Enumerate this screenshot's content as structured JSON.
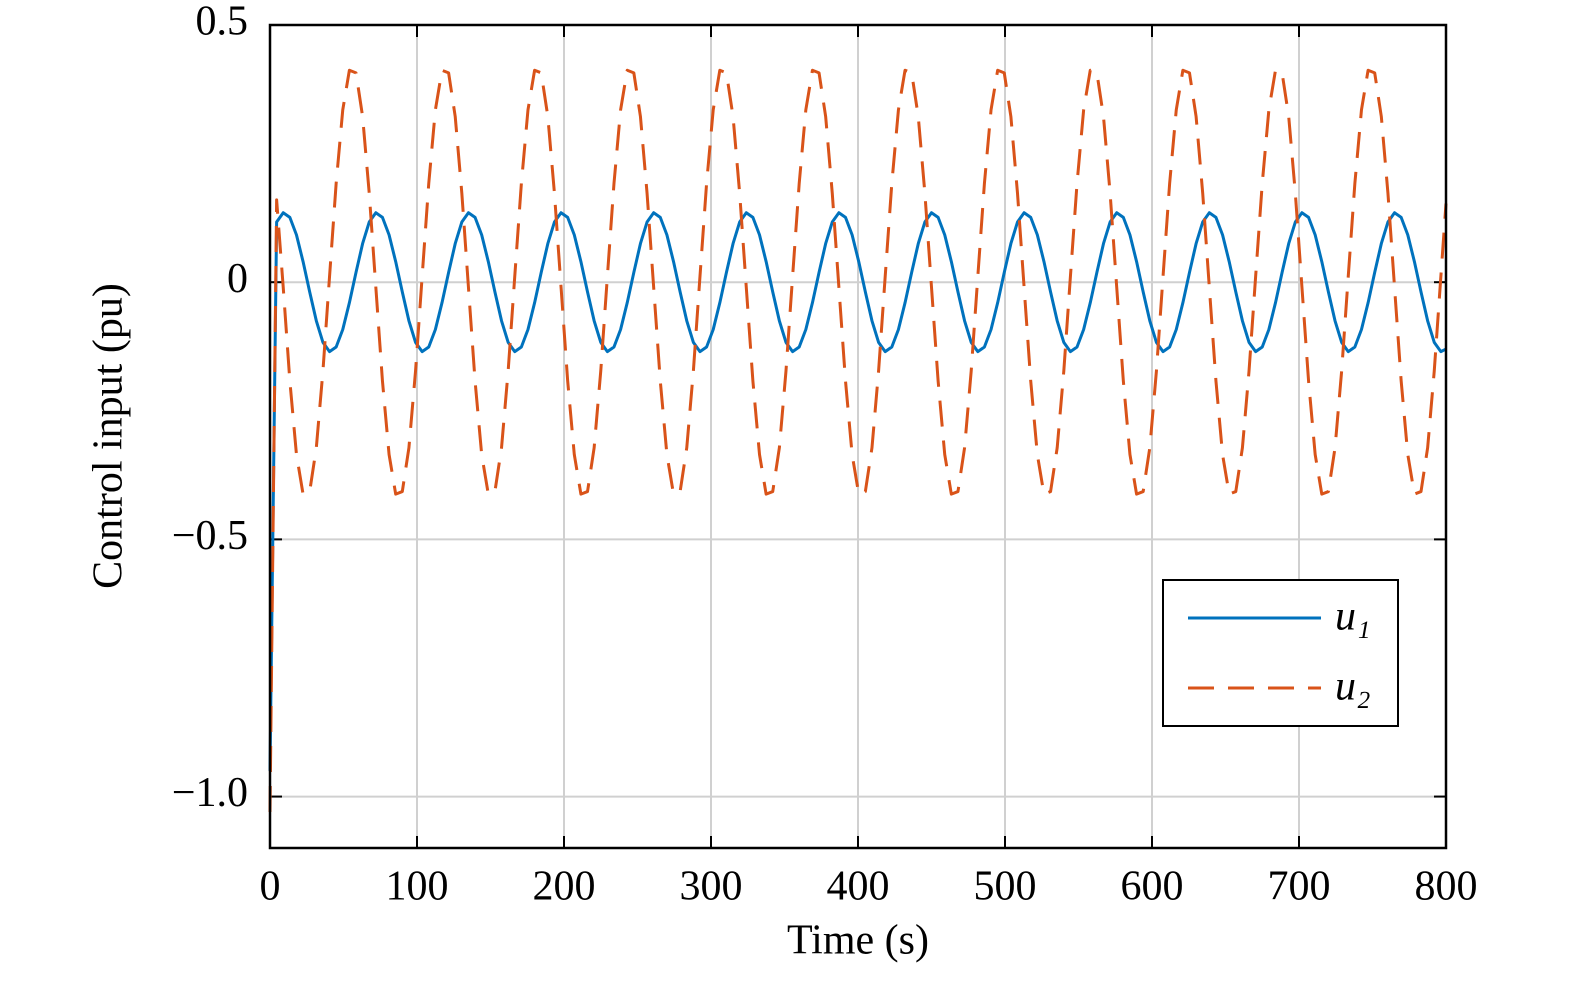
{
  "chart_data": {
    "type": "line",
    "xlabel": "Time (s)",
    "ylabel": "Control input (pu)",
    "xlim": [
      0,
      800
    ],
    "xticks": [
      0,
      100,
      200,
      300,
      400,
      500,
      600,
      700,
      800
    ],
    "ylim": [
      -1.1,
      0.5
    ],
    "yticks": [
      0.5,
      0,
      {
        "value": -0.5,
        "label": "−0.5"
      },
      {
        "value": -1,
        "label": "−1.0"
      }
    ],
    "grid": true,
    "legend": "lower right",
    "x": [
      0,
      4.5,
      9,
      13.5,
      18,
      22.5,
      27,
      31.5,
      36,
      40.5,
      45,
      49.5,
      54,
      58.5,
      63,
      67.5,
      72,
      76.5,
      81,
      85.5,
      90,
      94.5,
      99,
      103.5,
      108,
      112.5,
      117,
      121.5,
      126,
      130.5,
      135,
      139.5,
      144,
      148.5,
      153,
      157.5,
      162,
      166.5,
      171,
      175.5,
      180,
      184.5,
      189,
      193.5,
      198,
      202.5,
      207,
      211.5,
      216,
      220.5,
      225,
      229.5,
      234,
      238.5,
      243,
      247.5,
      252,
      256.5,
      261,
      265.5,
      270,
      274.5,
      279,
      283.5,
      288,
      292.5,
      297,
      301.5,
      306,
      310.5,
      315,
      319.5,
      324,
      328.5,
      333,
      337.5,
      342,
      346.5,
      351,
      355.5,
      360,
      364.5,
      369,
      373.5,
      378,
      382.5,
      387,
      391.5,
      396,
      400.5,
      405,
      409.5,
      414,
      418.5,
      423,
      427.5,
      432,
      436.5,
      441,
      445.5,
      450,
      454.5,
      459,
      463.5,
      468,
      472.5,
      477,
      481.5,
      486,
      490.5,
      495,
      499.5,
      504,
      508.5,
      513,
      517.5,
      522,
      526.5,
      531,
      535.5,
      540,
      544.5,
      549,
      553.5,
      558,
      562.5,
      567,
      571.5,
      576,
      580.5,
      585,
      589.5,
      594,
      598.5,
      603,
      607.5,
      612,
      616.5,
      621,
      625.5,
      630,
      634.5,
      639,
      643.5,
      648,
      652.5,
      657,
      661.5,
      666,
      670.5,
      675,
      679.5,
      684,
      688.5,
      693,
      697.5,
      702,
      706.5,
      711,
      715.5,
      720,
      724.5,
      729,
      733.5,
      738,
      742.5,
      747,
      751.5,
      756,
      760.5,
      765,
      769.5,
      774,
      778.5,
      783,
      787.5,
      792,
      796.5,
      800
    ],
    "series": [
      {
        "name": "u₁",
        "color": "#0072bd",
        "line_style": "solid",
        "values": [
          -0.95,
          0.117,
          0.135,
          0.126,
          0.092,
          0.04,
          -0.019,
          -0.075,
          -0.117,
          -0.135,
          -0.126,
          -0.092,
          -0.04,
          0.019,
          0.075,
          0.117,
          0.135,
          0.126,
          0.092,
          0.04,
          -0.019,
          -0.075,
          -0.117,
          -0.135,
          -0.126,
          -0.092,
          -0.04,
          0.019,
          0.075,
          0.117,
          0.135,
          0.126,
          0.092,
          0.04,
          -0.019,
          -0.075,
          -0.117,
          -0.135,
          -0.126,
          -0.092,
          -0.04,
          0.019,
          0.075,
          0.117,
          0.135,
          0.126,
          0.092,
          0.04,
          -0.019,
          -0.075,
          -0.117,
          -0.135,
          -0.126,
          -0.092,
          -0.04,
          0.019,
          0.075,
          0.117,
          0.135,
          0.126,
          0.092,
          0.04,
          -0.019,
          -0.075,
          -0.117,
          -0.135,
          -0.126,
          -0.092,
          -0.04,
          0.019,
          0.075,
          0.117,
          0.135,
          0.126,
          0.092,
          0.04,
          -0.019,
          -0.075,
          -0.117,
          -0.135,
          -0.126,
          -0.092,
          -0.04,
          0.019,
          0.075,
          0.117,
          0.135,
          0.126,
          0.092,
          0.04,
          -0.019,
          -0.075,
          -0.117,
          -0.135,
          -0.126,
          -0.092,
          -0.04,
          0.019,
          0.075,
          0.117,
          0.135,
          0.126,
          0.092,
          0.04,
          -0.019,
          -0.075,
          -0.117,
          -0.135,
          -0.126,
          -0.092,
          -0.04,
          0.019,
          0.075,
          0.117,
          0.135,
          0.126,
          0.092,
          0.04,
          -0.019,
          -0.075,
          -0.117,
          -0.135,
          -0.126,
          -0.092,
          -0.04,
          0.019,
          0.075,
          0.117,
          0.135,
          0.126,
          0.092,
          0.04,
          -0.019,
          -0.075,
          -0.117,
          -0.135,
          -0.126,
          -0.092,
          -0.04,
          0.019,
          0.075,
          0.117,
          0.135,
          0.126,
          0.092,
          0.04,
          -0.019,
          -0.075,
          -0.117,
          -0.135,
          -0.126,
          -0.092,
          -0.04,
          0.019,
          0.075,
          0.117,
          0.135,
          0.126,
          0.092,
          0.04,
          -0.019,
          -0.075,
          -0.117,
          -0.135,
          -0.126,
          -0.092,
          -0.04,
          0.019,
          0.075,
          0.117,
          0.135,
          0.126,
          0.092,
          0.04,
          -0.019,
          -0.075,
          -0.117,
          -0.135,
          -0.13
        ]
      },
      {
        "name": "u₂",
        "color": "#d95319",
        "line_style": "dashed",
        "values": [
          -1.03,
          0.16,
          -0.01,
          -0.192,
          -0.335,
          -0.412,
          -0.407,
          -0.322,
          -0.173,
          0.011,
          0.192,
          0.335,
          0.412,
          0.407,
          0.322,
          0.173,
          -0.01,
          -0.192,
          -0.335,
          -0.412,
          -0.407,
          -0.322,
          -0.173,
          0.011,
          0.192,
          0.335,
          0.412,
          0.407,
          0.322,
          0.173,
          -0.01,
          -0.192,
          -0.335,
          -0.412,
          -0.407,
          -0.322,
          -0.173,
          0.011,
          0.192,
          0.335,
          0.412,
          0.407,
          0.322,
          0.173,
          -0.01,
          -0.192,
          -0.335,
          -0.412,
          -0.407,
          -0.322,
          -0.173,
          0.011,
          0.192,
          0.335,
          0.412,
          0.407,
          0.322,
          0.173,
          -0.01,
          -0.192,
          -0.335,
          -0.412,
          -0.407,
          -0.322,
          -0.173,
          0.011,
          0.192,
          0.335,
          0.412,
          0.407,
          0.322,
          0.173,
          -0.01,
          -0.192,
          -0.335,
          -0.412,
          -0.407,
          -0.322,
          -0.173,
          0.011,
          0.192,
          0.335,
          0.412,
          0.407,
          0.322,
          0.173,
          -0.01,
          -0.192,
          -0.335,
          -0.412,
          -0.407,
          -0.322,
          -0.173,
          0.011,
          0.192,
          0.335,
          0.412,
          0.407,
          0.322,
          0.173,
          -0.01,
          -0.192,
          -0.335,
          -0.412,
          -0.407,
          -0.322,
          -0.173,
          0.011,
          0.192,
          0.335,
          0.412,
          0.407,
          0.322,
          0.173,
          -0.01,
          -0.192,
          -0.335,
          -0.412,
          -0.407,
          -0.322,
          -0.173,
          0.011,
          0.192,
          0.335,
          0.412,
          0.407,
          0.322,
          0.173,
          -0.01,
          -0.192,
          -0.335,
          -0.412,
          -0.407,
          -0.322,
          -0.173,
          0.011,
          0.192,
          0.335,
          0.412,
          0.407,
          0.322,
          0.173,
          -0.01,
          -0.192,
          -0.335,
          -0.412,
          -0.407,
          -0.322,
          -0.173,
          0.011,
          0.192,
          0.335,
          0.412,
          0.407,
          0.322,
          0.173,
          -0.01,
          -0.192,
          -0.335,
          -0.412,
          -0.407,
          -0.322,
          -0.173,
          0.011,
          0.192,
          0.335,
          0.412,
          0.407,
          0.322,
          0.173,
          -0.01,
          -0.192,
          -0.335,
          -0.412,
          -0.407,
          -0.322,
          -0.173,
          0.011,
          0.153
        ]
      }
    ]
  }
}
